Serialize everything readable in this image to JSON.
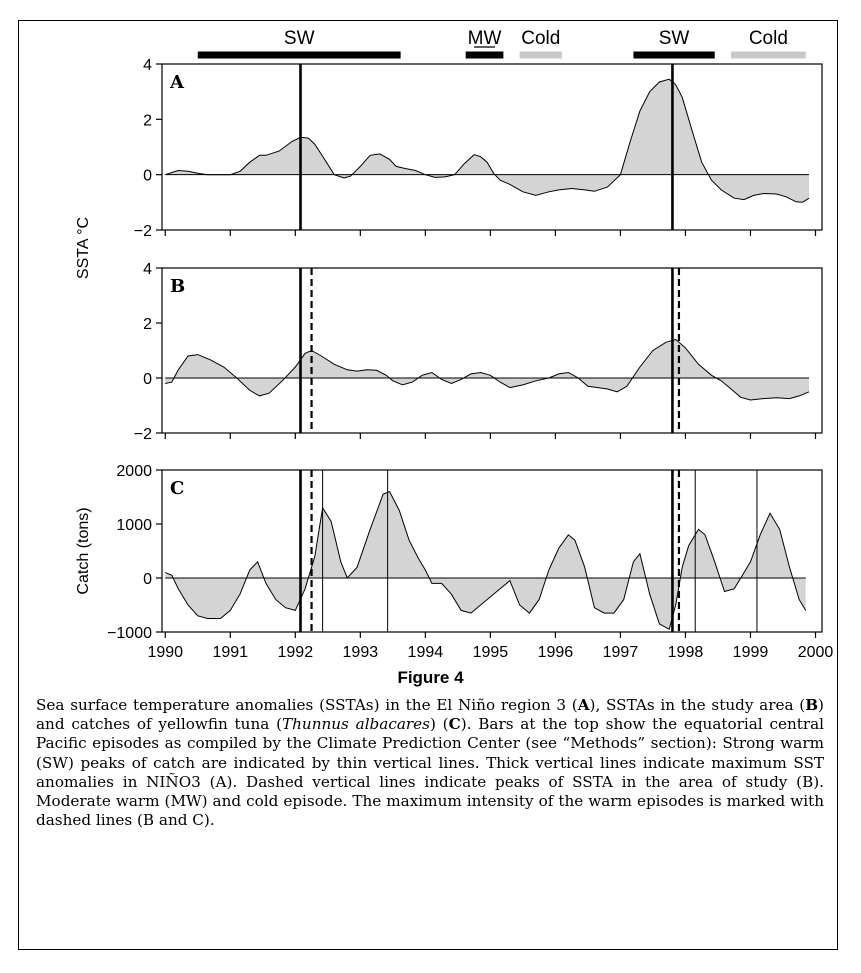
{
  "figure": {
    "title": "Figure 4",
    "caption_parts": [
      {
        "t": "Sea surface temperature anomalies (SSTAs) in the El Niño region 3 ("
      },
      {
        "t": "A",
        "b": true
      },
      {
        "t": "), SSTAs in the study area ("
      },
      {
        "t": "B",
        "b": true
      },
      {
        "t": ") and catches of yellowfin tuna ("
      },
      {
        "t": "Thunnus albacares",
        "i": true
      },
      {
        "t": ") ("
      },
      {
        "t": "C",
        "b": true
      },
      {
        "t": "). Bars at the top show the equatorial central Pacific episodes as compiled by the Climate Prediction Center (see “Methods” section): Strong warm (SW) peaks of catch are indicated by thin vertical lines. Thick vertical lines indicate maximum SST anomalies in NIÑO3 (A). Dashed vertical lines indicate peaks of SSTA in the area of study (B). Moderate warm (MW) and cold episode. The maximum intensity of the warm episodes is marked with dashed lines (B and C)."
      }
    ]
  },
  "episodes": [
    {
      "label": "SW",
      "start": 1990.5,
      "end": 1993.62,
      "color": "#000000",
      "underline": false
    },
    {
      "label": "MW",
      "start": 1994.62,
      "end": 1995.2,
      "color": "#000000",
      "underline": true
    },
    {
      "label": "Cold",
      "start": 1995.45,
      "end": 1996.1,
      "color": "#c8c8c8",
      "underline": false
    },
    {
      "label": "SW",
      "start": 1997.2,
      "end": 1998.45,
      "color": "#000000",
      "underline": false
    },
    {
      "label": "Cold",
      "start": 1998.7,
      "end": 1999.85,
      "color": "#c8c8c8",
      "underline": false
    }
  ],
  "chart_data": [
    {
      "type": "area",
      "panel": "A",
      "ylabel": "SSTA °C",
      "ylim": [
        -2,
        4
      ],
      "yticks": [
        "4",
        "2",
        "0",
        "−2"
      ],
      "ytick_values": [
        4,
        2,
        0,
        -2
      ],
      "fill": "#d4d4d4",
      "x": [
        1990.0,
        1990.1,
        1990.2,
        1990.35,
        1990.5,
        1990.65,
        1990.8,
        1991.0,
        1991.15,
        1991.3,
        1991.45,
        1991.55,
        1991.75,
        1991.95,
        1992.08,
        1992.2,
        1992.3,
        1992.45,
        1992.6,
        1992.75,
        1992.85,
        1993.0,
        1993.15,
        1993.3,
        1993.45,
        1993.55,
        1993.7,
        1993.85,
        1994.0,
        1994.15,
        1994.3,
        1994.45,
        1994.6,
        1994.75,
        1994.85,
        1994.95,
        1995.05,
        1995.15,
        1995.3,
        1995.5,
        1995.7,
        1995.9,
        1996.05,
        1996.25,
        1996.45,
        1996.6,
        1996.8,
        1997.0,
        1997.15,
        1997.3,
        1997.45,
        1997.6,
        1997.75,
        1997.85,
        1997.95,
        1998.1,
        1998.25,
        1998.4,
        1998.55,
        1998.75,
        1998.9,
        1999.05,
        1999.2,
        1999.4,
        1999.55,
        1999.7,
        1999.8,
        1999.9
      ],
      "y": [
        0.0,
        0.08,
        0.15,
        0.12,
        0.05,
        0.0,
        0.0,
        0.0,
        0.12,
        0.45,
        0.7,
        0.7,
        0.85,
        1.2,
        1.35,
        1.32,
        1.1,
        0.55,
        0.0,
        -0.12,
        -0.05,
        0.3,
        0.7,
        0.75,
        0.55,
        0.3,
        0.22,
        0.15,
        0.0,
        -0.1,
        -0.08,
        0.0,
        0.4,
        0.72,
        0.65,
        0.45,
        0.05,
        -0.2,
        -0.35,
        -0.62,
        -0.75,
        -0.62,
        -0.55,
        -0.5,
        -0.55,
        -0.6,
        -0.45,
        0.0,
        1.2,
        2.3,
        3.0,
        3.35,
        3.45,
        3.25,
        2.8,
        1.6,
        0.45,
        -0.2,
        -0.55,
        -0.85,
        -0.9,
        -0.75,
        -0.68,
        -0.7,
        -0.8,
        -0.98,
        -1.0,
        -0.85
      ],
      "vlines": [
        {
          "x": 1992.08,
          "style": "thick"
        },
        {
          "x": 1997.8,
          "style": "thick"
        }
      ]
    },
    {
      "type": "area",
      "panel": "B",
      "ylabel": "",
      "ylim": [
        -2,
        4
      ],
      "yticks": [
        "4",
        "2",
        "0",
        "−2"
      ],
      "ytick_values": [
        4,
        2,
        0,
        -2
      ],
      "fill": "#d4d4d4",
      "x": [
        1990.0,
        1990.1,
        1990.2,
        1990.35,
        1990.5,
        1990.7,
        1990.9,
        1991.1,
        1991.3,
        1991.45,
        1991.6,
        1991.8,
        1992.0,
        1992.15,
        1992.25,
        1992.4,
        1992.6,
        1992.8,
        1992.95,
        1993.1,
        1993.25,
        1993.4,
        1993.5,
        1993.65,
        1993.8,
        1993.95,
        1994.1,
        1994.25,
        1994.4,
        1994.55,
        1994.7,
        1994.85,
        1995.0,
        1995.15,
        1995.3,
        1995.5,
        1995.7,
        1995.9,
        1996.05,
        1996.2,
        1996.35,
        1996.5,
        1996.65,
        1996.8,
        1996.95,
        1997.1,
        1997.3,
        1997.5,
        1997.7,
        1997.85,
        1998.0,
        1998.2,
        1998.4,
        1998.55,
        1998.7,
        1998.85,
        1999.0,
        1999.2,
        1999.4,
        1999.6,
        1999.75,
        1999.9
      ],
      "y": [
        -0.2,
        -0.15,
        0.3,
        0.8,
        0.85,
        0.65,
        0.4,
        0.0,
        -0.45,
        -0.65,
        -0.55,
        -0.1,
        0.4,
        0.9,
        1.0,
        0.8,
        0.5,
        0.3,
        0.25,
        0.3,
        0.28,
        0.1,
        -0.1,
        -0.25,
        -0.15,
        0.1,
        0.2,
        -0.05,
        -0.2,
        -0.05,
        0.15,
        0.2,
        0.1,
        -0.15,
        -0.35,
        -0.25,
        -0.1,
        0.0,
        0.15,
        0.2,
        0.0,
        -0.3,
        -0.35,
        -0.4,
        -0.5,
        -0.3,
        0.4,
        1.0,
        1.3,
        1.4,
        1.1,
        0.5,
        0.1,
        -0.1,
        -0.4,
        -0.7,
        -0.8,
        -0.75,
        -0.72,
        -0.75,
        -0.65,
        -0.5
      ],
      "vlines": [
        {
          "x": 1992.08,
          "style": "thick"
        },
        {
          "x": 1992.25,
          "style": "dashed"
        },
        {
          "x": 1997.8,
          "style": "thick"
        },
        {
          "x": 1997.9,
          "style": "dashed"
        }
      ]
    },
    {
      "type": "area",
      "panel": "C",
      "ylabel": "Catch (tons)",
      "ylim": [
        -1000,
        2000
      ],
      "yticks": [
        "2000",
        "1000",
        "0",
        "−1000"
      ],
      "ytick_values": [
        2000,
        1000,
        0,
        -1000
      ],
      "fill": "#d4d4d4",
      "x": [
        1990.0,
        1990.1,
        1990.2,
        1990.35,
        1990.5,
        1990.65,
        1990.85,
        1991.0,
        1991.15,
        1991.3,
        1991.42,
        1991.55,
        1991.7,
        1991.85,
        1992.0,
        1992.15,
        1992.3,
        1992.42,
        1992.55,
        1992.7,
        1992.8,
        1992.95,
        1993.15,
        1993.35,
        1993.45,
        1993.6,
        1993.75,
        1993.9,
        1994.0,
        1994.1,
        1994.25,
        1994.4,
        1994.55,
        1994.7,
        1994.85,
        1995.0,
        1995.15,
        1995.3,
        1995.45,
        1995.6,
        1995.75,
        1995.9,
        1996.05,
        1996.2,
        1996.3,
        1996.45,
        1996.6,
        1996.75,
        1996.9,
        1997.05,
        1997.2,
        1997.3,
        1997.45,
        1997.6,
        1997.75,
        1997.85,
        1997.95,
        1998.05,
        1998.2,
        1998.3,
        1998.45,
        1998.6,
        1998.75,
        1998.9,
        1999.0,
        1999.15,
        1999.3,
        1999.45,
        1999.6,
        1999.75,
        1999.85
      ],
      "y": [
        100,
        50,
        -200,
        -500,
        -700,
        -750,
        -750,
        -600,
        -300,
        150,
        300,
        -100,
        -400,
        -550,
        -600,
        -200,
        400,
        1300,
        1050,
        300,
        0,
        200,
        900,
        1550,
        1600,
        1250,
        700,
        350,
        150,
        -100,
        -100,
        -300,
        -600,
        -650,
        -500,
        -350,
        -200,
        -50,
        -500,
        -650,
        -400,
        150,
        550,
        800,
        700,
        200,
        -550,
        -650,
        -650,
        -400,
        300,
        450,
        -300,
        -850,
        -950,
        -500,
        200,
        600,
        900,
        800,
        300,
        -250,
        -200,
        100,
        300,
        800,
        1200,
        900,
        200,
        -400,
        -600
      ],
      "vlines": [
        {
          "x": 1992.08,
          "style": "thick"
        },
        {
          "x": 1992.25,
          "style": "dashed"
        },
        {
          "x": 1992.42,
          "style": "thin"
        },
        {
          "x": 1993.42,
          "style": "thin"
        },
        {
          "x": 1997.8,
          "style": "thick"
        },
        {
          "x": 1997.9,
          "style": "dashed"
        },
        {
          "x": 1998.15,
          "style": "thin"
        },
        {
          "x": 1999.1,
          "style": "thin"
        }
      ],
      "xlabel": "",
      "xticks": [
        "1990",
        "1991",
        "1992",
        "1993",
        "1994",
        "1995",
        "1996",
        "1997",
        "1998",
        "1999",
        "2000"
      ],
      "xtick_values": [
        1990,
        1991,
        1992,
        1993,
        1994,
        1995,
        1996,
        1997,
        1998,
        1999,
        2000
      ]
    }
  ]
}
